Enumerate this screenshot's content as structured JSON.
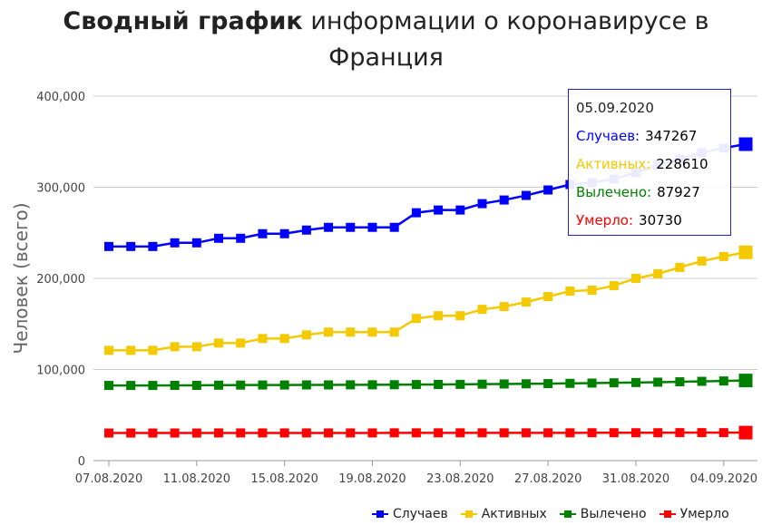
{
  "title": {
    "bold": "Сводный график",
    "rest_line1": " информации о коронавирусе в",
    "line2": "Франция"
  },
  "chart_data": {
    "type": "line",
    "ylabel": "Человек (всего)",
    "ylim": [
      0,
      400000
    ],
    "yticks": [
      {
        "value": 0,
        "label": "0"
      },
      {
        "value": 100000,
        "label": "100,000"
      },
      {
        "value": 200000,
        "label": "200,000"
      },
      {
        "value": 300000,
        "label": "300,000"
      },
      {
        "value": 400000,
        "label": "400,000"
      }
    ],
    "grid": true,
    "legend_position": "bottom-right",
    "categories": [
      "07.08.2020",
      "08.08.2020",
      "09.08.2020",
      "10.08.2020",
      "11.08.2020",
      "12.08.2020",
      "13.08.2020",
      "14.08.2020",
      "15.08.2020",
      "16.08.2020",
      "17.08.2020",
      "18.08.2020",
      "19.08.2020",
      "20.08.2020",
      "21.08.2020",
      "22.08.2020",
      "23.08.2020",
      "24.08.2020",
      "25.08.2020",
      "26.08.2020",
      "27.08.2020",
      "28.08.2020",
      "29.08.2020",
      "30.08.2020",
      "31.08.2020",
      "01.09.2020",
      "02.09.2020",
      "03.09.2020",
      "04.09.2020",
      "05.09.2020"
    ],
    "x_tick_labels": [
      "07.08.2020",
      "11.08.2020",
      "15.08.2020",
      "19.08.2020",
      "23.08.2020",
      "27.08.2020",
      "31.08.2020",
      "04.09.2020"
    ],
    "series": [
      {
        "name": "Случаев",
        "color": "#0000ff",
        "values": [
          235000,
          235000,
          235000,
          239000,
          239000,
          244000,
          244000,
          249000,
          249000,
          253000,
          256000,
          256000,
          256000,
          256000,
          272000,
          275000,
          275000,
          282000,
          286000,
          291000,
          297000,
          303000,
          305000,
          309000,
          316000,
          324000,
          331000,
          338000,
          343000,
          347267
        ]
      },
      {
        "name": "Активных",
        "color": "#f5c900",
        "values": [
          121000,
          121000,
          121000,
          125000,
          125000,
          129000,
          129000,
          134000,
          134000,
          138000,
          141000,
          141000,
          141000,
          141000,
          156000,
          159000,
          159000,
          166000,
          169000,
          174000,
          180000,
          186000,
          187000,
          192000,
          200000,
          205000,
          212000,
          219000,
          224000,
          228610
        ]
      },
      {
        "name": "Вылечено",
        "color": "#008000",
        "values": [
          82500,
          82500,
          82500,
          82600,
          82600,
          82800,
          82900,
          83000,
          83000,
          83100,
          83100,
          83200,
          83200,
          83300,
          83500,
          83600,
          83700,
          83900,
          84100,
          84300,
          84500,
          84800,
          85100,
          85400,
          85700,
          86100,
          86500,
          87000,
          87400,
          87927
        ]
      },
      {
        "name": "Умерло",
        "color": "#ff0000",
        "values": [
          30300,
          30300,
          30300,
          30300,
          30300,
          30400,
          30400,
          30400,
          30400,
          30400,
          30400,
          30400,
          30400,
          30500,
          30500,
          30500,
          30500,
          30500,
          30500,
          30500,
          30500,
          30500,
          30600,
          30600,
          30600,
          30600,
          30700,
          30700,
          30700,
          30730
        ]
      }
    ],
    "tooltip": {
      "date": "05.09.2020",
      "rows": [
        {
          "label": "Случаев:",
          "value": "347267",
          "color": "#0000ff"
        },
        {
          "label": "Активных:",
          "value": "228610",
          "color": "#f5c900"
        },
        {
          "label": "Вылечено:",
          "value": "87927",
          "color": "#008000"
        },
        {
          "label": "Умерло:",
          "value": "30730",
          "color": "#ff0000"
        }
      ]
    }
  }
}
